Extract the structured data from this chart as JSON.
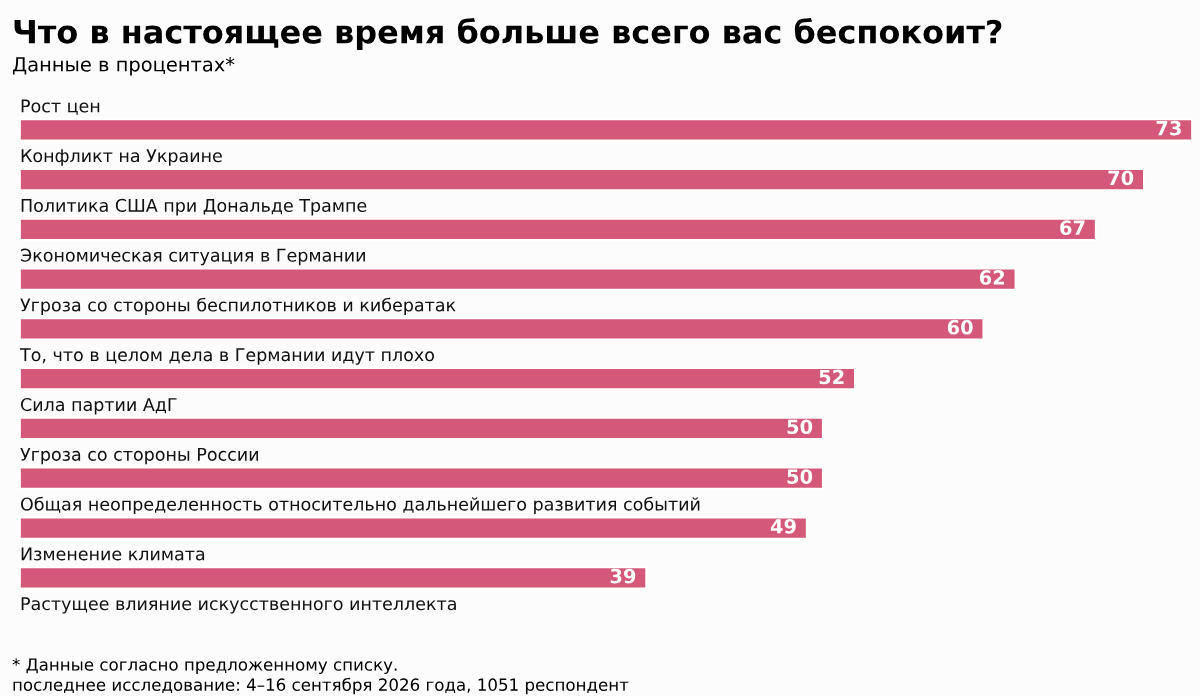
{
  "chart_data": {
    "type": "bar",
    "orientation": "horizontal",
    "title": "Что в настоящее время больше всего вас беспокоит?",
    "subtitle": "Данные в процентах*",
    "categories": [
      "Рост цен",
      "Конфликт на Украине",
      "Политика США при Дональде Трампе",
      "Экономическая ситуация в Германии",
      "Угроза со стороны беспилотников и кибератак",
      "То, что в целом дела в Германии идут плохо",
      "Сила партии АдГ",
      "Угроза со стороны России",
      "Общая неопределенность относительно дальнейшего развития событий",
      "Изменение климата",
      "Растущее влияние искусственного интеллекта"
    ],
    "values": [
      73,
      70,
      67,
      62,
      60,
      52,
      50,
      50,
      49,
      39,
      null
    ],
    "color": "#d4587a",
    "data_labels": true,
    "annotations": [
      "* Данные согласно предложенному списку.",
      "последнее исследование: 4–16 сентября 2026 года, 1051 респондент"
    ]
  }
}
